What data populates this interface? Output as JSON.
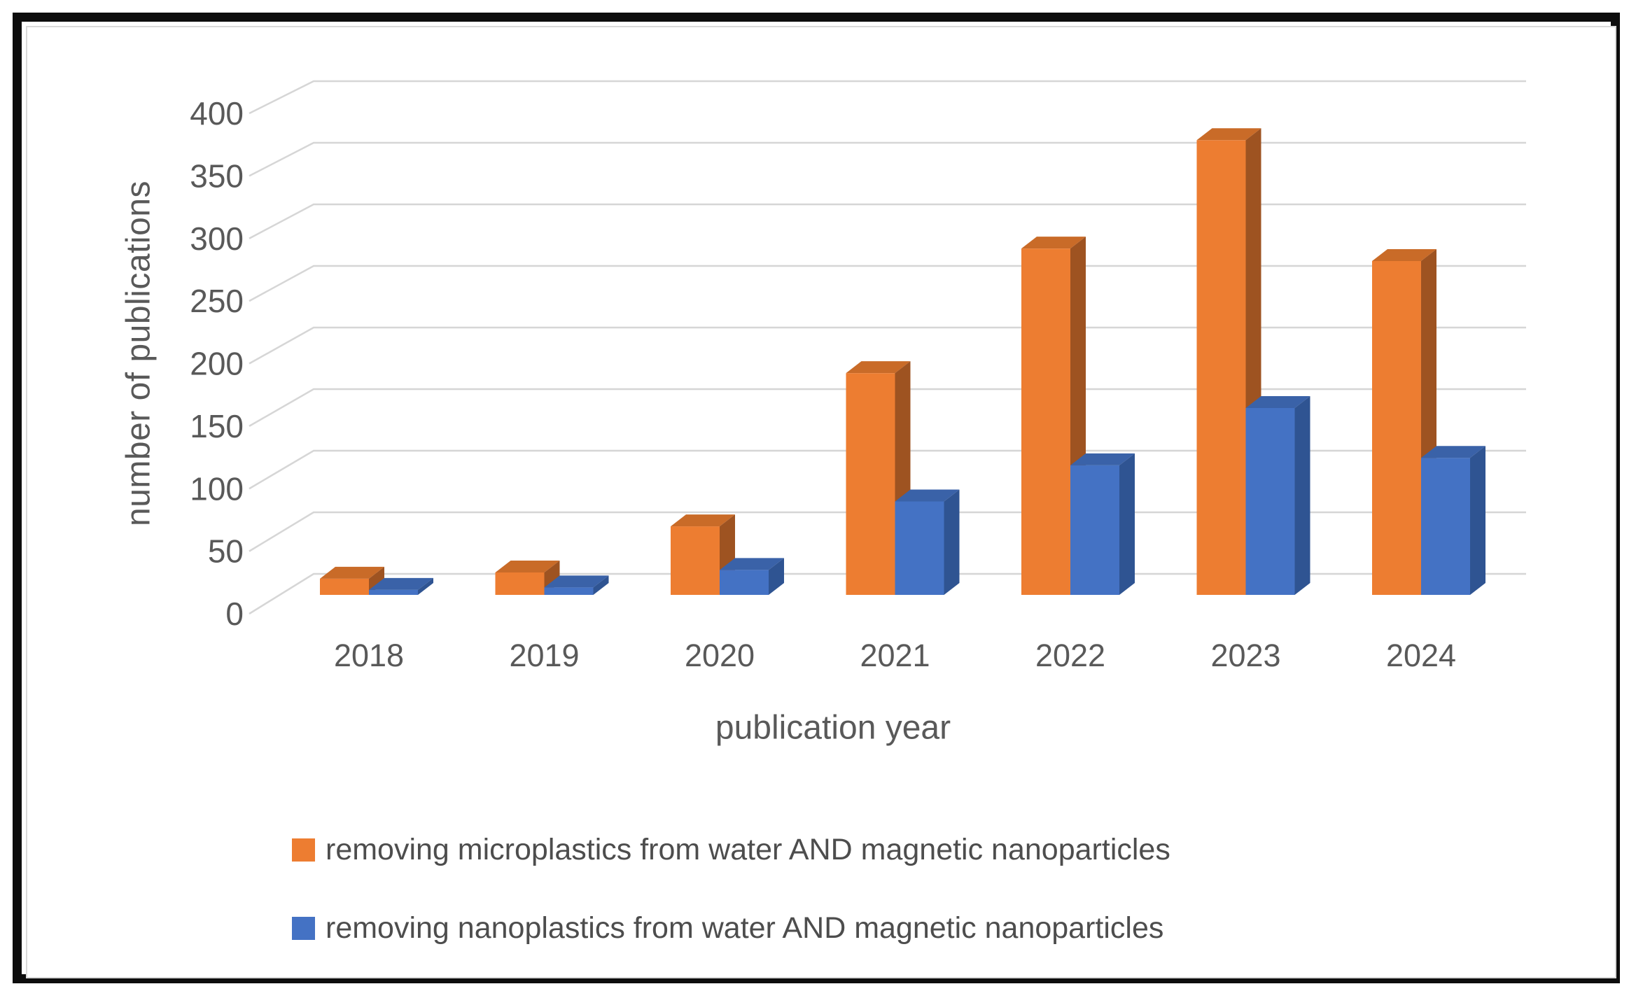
{
  "chart_data": {
    "type": "bar",
    "subtype": "3d-clustered-column",
    "title": "",
    "xlabel": "publication year",
    "ylabel": "number of publications",
    "categories": [
      "2018",
      "2019",
      "2020",
      "2021",
      "2022",
      "2023",
      "2024"
    ],
    "series": [
      {
        "name": "removing microplastics from water AND magnetic nanoparticles",
        "values": [
          13,
          18,
          55,
          178,
          278,
          365,
          268
        ],
        "color_front": "#ED7D31",
        "color_top": "#C96B28",
        "color_side": "#9E5321"
      },
      {
        "name": "removing nanoplastics from water AND magnetic nanoparticles",
        "values": [
          4,
          6,
          20,
          75,
          104,
          150,
          110
        ],
        "color_front": "#4472C4",
        "color_top": "#3A62A8",
        "color_side": "#2F5492"
      }
    ],
    "ylim": [
      0,
      400
    ],
    "yticks": [
      0,
      50,
      100,
      150,
      200,
      250,
      300,
      350,
      400
    ],
    "grid": true,
    "legend_position": "bottom-left",
    "gridline_color": "#d6d6d6",
    "axis_text_color": "#595959",
    "figure_border_color": "#0d0d0d"
  }
}
